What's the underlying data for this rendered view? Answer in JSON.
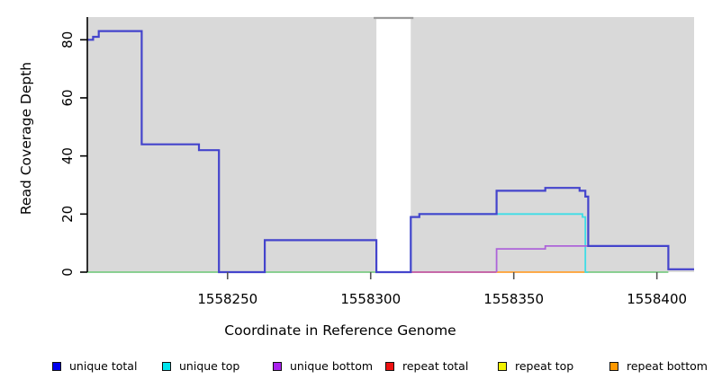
{
  "figure": {
    "background": "#ffffff",
    "plot_background": "#d9d9d9"
  },
  "chart_data": {
    "type": "line",
    "step_mode": "after",
    "title": "",
    "xlabel": "Coordinate in Reference Genome",
    "ylabel": "Read Coverage Depth",
    "xlim": [
      1558201,
      1558413
    ],
    "ylim": [
      0,
      88
    ],
    "xticks": [
      1558250,
      1558300,
      1558350,
      1558400
    ],
    "yticks": [
      0,
      20,
      40,
      60,
      80
    ],
    "grid": false,
    "legend_position": "bottom",
    "plot_background": "#d9d9d9",
    "masked_region": {
      "x_start": 1558302,
      "x_end": 1558314,
      "fill": "#ffffff",
      "top_line_color": "#9a9a9a"
    },
    "series": [
      {
        "name": "unique total",
        "legend_color": "#0000ee",
        "line_color": "#4444cc",
        "line_width": 2.2,
        "draw": true,
        "points": [
          [
            1558201,
            80
          ],
          [
            1558203,
            81
          ],
          [
            1558205,
            83
          ],
          [
            1558220,
            44
          ],
          [
            1558240,
            42
          ],
          [
            1558247,
            0
          ],
          [
            1558263,
            11
          ],
          [
            1558302,
            0
          ],
          [
            1558314,
            19
          ],
          [
            1558317,
            20
          ],
          [
            1558344,
            28
          ],
          [
            1558361,
            29
          ],
          [
            1558373,
            28
          ],
          [
            1558375,
            26
          ],
          [
            1558376,
            9
          ],
          [
            1558404,
            1
          ],
          [
            1558413,
            1
          ]
        ]
      },
      {
        "name": "unique top",
        "legend_color": "#00e5ee",
        "line_color": "#3ddde6",
        "line_width": 1.8,
        "draw": true,
        "points": [
          [
            1558314,
            0
          ],
          [
            1558314,
            19
          ],
          [
            1558317,
            20
          ],
          [
            1558374,
            19
          ],
          [
            1558375,
            0
          ],
          [
            1558376,
            0
          ]
        ]
      },
      {
        "name": "unique bottom",
        "legend_color": "#aa22ee",
        "line_color": "#ad64d9",
        "line_width": 1.8,
        "draw": true,
        "points": [
          [
            1558344,
            0
          ],
          [
            1558344,
            8
          ],
          [
            1558361,
            9
          ],
          [
            1558404,
            1
          ],
          [
            1558413,
            1
          ]
        ]
      },
      {
        "name": "repeat total",
        "legend_color": "#ee1111",
        "line_color": "#c0569f",
        "line_width": 1.6,
        "draw": false,
        "points": [
          [
            1558314,
            0
          ],
          [
            1558413,
            0
          ]
        ]
      },
      {
        "name": "repeat top",
        "legend_color": "#f2f200",
        "line_color": "#f2f200",
        "line_width": 1.6,
        "draw": false,
        "points": [
          [
            1558201,
            0
          ],
          [
            1558413,
            0
          ]
        ]
      },
      {
        "name": "repeat bottom",
        "legend_color": "#ff9900",
        "line_color": "#ffa032",
        "line_width": 2,
        "draw": false,
        "points": [
          [
            1558344,
            0
          ],
          [
            1558376,
            0
          ]
        ]
      }
    ],
    "baseline_overlap_segments": [
      {
        "x": [
          1558201,
          1558302
        ],
        "color": "#7ccb84",
        "note": "overlapping zero-depth lines render green"
      },
      {
        "x": [
          1558314,
          1558344
        ],
        "color": "#c0569f",
        "note": "repeat total + unique bottom at zero"
      },
      {
        "x": [
          1558344,
          1558376
        ],
        "color": "#ffa032",
        "note": "repeat bottom at zero"
      },
      {
        "x": [
          1558376,
          1558404
        ],
        "color": "#7ccb84",
        "note": "overlapping zero-depth lines render green"
      }
    ]
  },
  "legend": {
    "items": [
      {
        "label": "unique total",
        "color": "#0000ee"
      },
      {
        "label": "unique top",
        "color": "#00e5ee"
      },
      {
        "label": "unique bottom",
        "color": "#aa22ee"
      },
      {
        "label": "repeat total",
        "color": "#ee1111"
      },
      {
        "label": "repeat top",
        "color": "#f2f200"
      },
      {
        "label": "repeat bottom",
        "color": "#ff9900"
      }
    ]
  }
}
